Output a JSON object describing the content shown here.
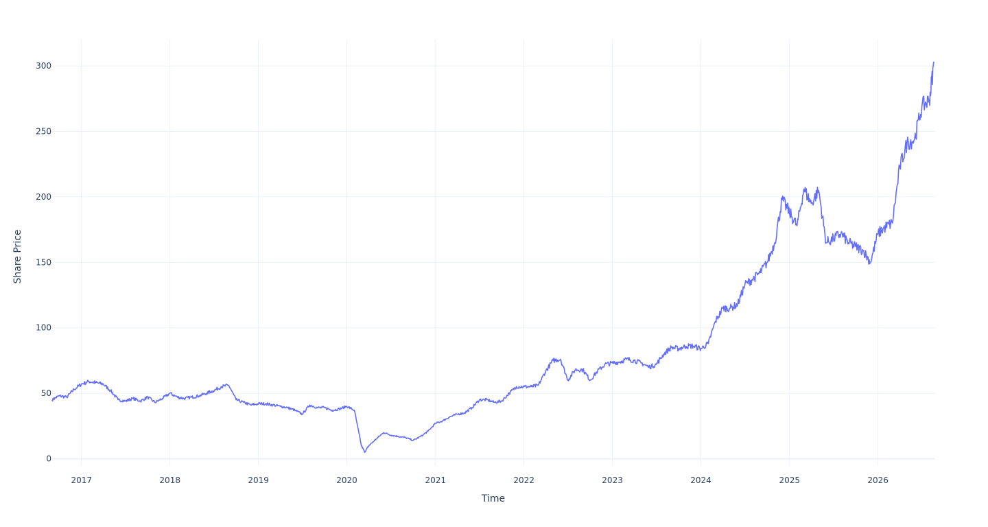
{
  "chart_data": {
    "type": "line",
    "title": "",
    "xlabel": "Time",
    "ylabel": "Share Price",
    "xlim": [
      "2016-08-30",
      "2026-08-25"
    ],
    "ylim": [
      -5,
      320
    ],
    "x_ticks": [
      "2017",
      "2018",
      "2019",
      "2020",
      "2021",
      "2022",
      "2023",
      "2024",
      "2025",
      "2026"
    ],
    "y_ticks": [
      0,
      50,
      100,
      150,
      200,
      250,
      300
    ],
    "grid": true,
    "legend": "none",
    "colors": {
      "series": "#636efa",
      "grid": "#ebf0f8",
      "text": "#2a3f5f"
    },
    "series": [
      {
        "x": [
          "2016-09-01",
          "2016-10-01",
          "2016-11-01",
          "2016-12-01",
          "2017-01-01",
          "2017-02-01",
          "2017-03-01",
          "2017-04-01",
          "2017-05-01",
          "2017-06-01",
          "2017-07-01",
          "2017-08-01",
          "2017-09-01",
          "2017-10-01",
          "2017-11-01",
          "2017-12-01",
          "2018-01-01",
          "2018-02-01",
          "2018-03-01",
          "2018-04-01",
          "2018-05-01",
          "2018-06-01",
          "2018-07-01",
          "2018-08-01",
          "2018-09-01",
          "2018-10-01",
          "2018-11-01",
          "2018-12-01",
          "2019-01-01",
          "2019-02-01",
          "2019-03-01",
          "2019-04-01",
          "2019-05-01",
          "2019-06-01",
          "2019-07-01",
          "2019-08-01",
          "2019-09-01",
          "2019-10-01",
          "2019-11-01",
          "2019-12-01",
          "2020-01-01",
          "2020-02-01",
          "2020-03-01",
          "2020-03-15",
          "2020-04-01",
          "2020-05-01",
          "2020-06-01",
          "2020-07-01",
          "2020-08-01",
          "2020-09-01",
          "2020-10-01",
          "2020-11-01",
          "2020-12-01",
          "2021-01-01",
          "2021-02-01",
          "2021-03-01",
          "2021-04-01",
          "2021-05-01",
          "2021-06-01",
          "2021-07-01",
          "2021-08-01",
          "2021-09-01",
          "2021-10-01",
          "2021-11-01",
          "2021-12-01",
          "2022-01-01",
          "2022-02-01",
          "2022-03-01",
          "2022-04-01",
          "2022-05-01",
          "2022-06-01",
          "2022-07-01",
          "2022-08-01",
          "2022-09-01",
          "2022-10-01",
          "2022-11-01",
          "2022-12-01",
          "2023-01-01",
          "2023-02-01",
          "2023-03-01",
          "2023-04-01",
          "2023-05-01",
          "2023-06-01",
          "2023-07-01",
          "2023-08-01",
          "2023-09-01",
          "2023-10-01",
          "2023-11-01",
          "2023-12-01",
          "2024-01-01",
          "2024-02-01",
          "2024-03-01",
          "2024-04-01",
          "2024-05-01",
          "2024-06-01",
          "2024-07-01",
          "2024-08-01",
          "2024-09-01",
          "2024-10-01",
          "2024-11-01",
          "2024-12-01",
          "2025-01-01",
          "2025-02-01",
          "2025-03-01",
          "2025-04-01",
          "2025-05-01",
          "2025-06-01",
          "2025-07-01",
          "2025-08-01",
          "2025-09-01",
          "2025-10-01",
          "2025-11-01",
          "2025-12-01",
          "2026-01-01",
          "2026-02-01",
          "2026-03-01",
          "2026-04-01",
          "2026-05-01",
          "2026-06-01",
          "2026-07-01",
          "2026-08-01",
          "2026-08-20"
        ],
        "values": [
          45,
          48,
          47,
          53,
          57,
          59,
          58,
          57,
          52,
          45,
          44,
          46,
          44,
          47,
          43,
          46,
          50,
          47,
          46,
          47,
          48,
          50,
          52,
          55,
          56,
          45,
          43,
          41,
          42,
          42,
          41,
          40,
          39,
          37,
          34,
          41,
          39,
          39,
          37,
          38,
          40,
          37,
          10,
          5,
          10,
          15,
          20,
          18,
          17,
          16,
          14,
          17,
          21,
          27,
          29,
          32,
          34,
          35,
          39,
          45,
          45,
          43,
          44,
          50,
          55,
          55,
          55,
          56,
          67,
          75,
          76,
          60,
          68,
          68,
          60,
          67,
          72,
          73,
          74,
          76,
          75,
          73,
          70,
          72,
          80,
          85,
          84,
          86,
          86,
          84,
          88,
          105,
          115,
          115,
          118,
          133,
          137,
          142,
          150,
          165,
          198,
          188,
          178,
          206,
          195,
          205,
          165,
          168,
          172,
          165,
          162,
          159,
          150,
          172,
          177,
          180,
          223,
          241,
          244,
          269,
          274,
          302
        ]
      }
    ]
  }
}
